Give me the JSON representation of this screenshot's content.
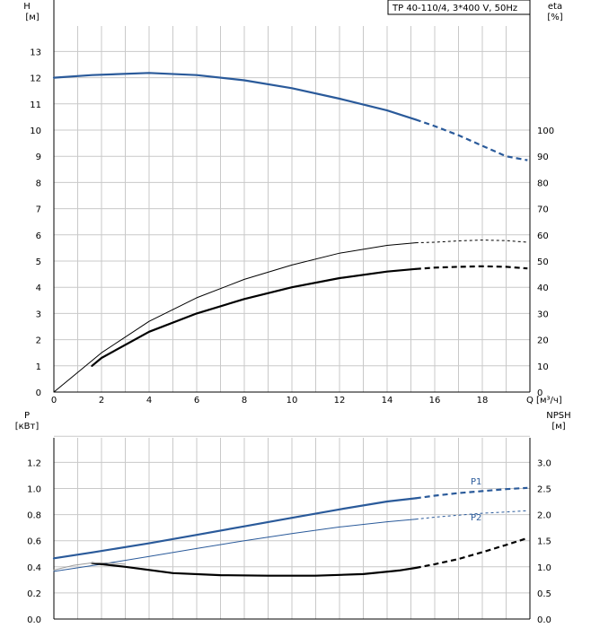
{
  "chart_data": [
    {
      "type": "line",
      "title": "TP 40-110/4, 3*400 V, 50Hz",
      "xlabel": "Q [м³/ч]",
      "ylabel_left": "H",
      "ylabel_left_unit": "[м]",
      "ylabel_right": "eta",
      "ylabel_right_unit": "[%]",
      "xlim": [
        0,
        20
      ],
      "ylim_left": [
        0,
        14
      ],
      "ylim_right": [
        0,
        140
      ],
      "grid": true,
      "x_ticks": [
        "0",
        "2",
        "4",
        "6",
        "8",
        "10",
        "12",
        "14",
        "16",
        "18",
        "Q [м³/ч]"
      ],
      "y_left_ticks": [
        "0",
        "1",
        "2",
        "3",
        "4",
        "5",
        "6",
        "7",
        "8",
        "9",
        "10",
        "11",
        "12",
        "13"
      ],
      "y_right_ticks": [
        "0",
        "10",
        "20",
        "30",
        "40",
        "50",
        "60",
        "70",
        "80",
        "90",
        "100"
      ],
      "series": [
        {
          "name": "",
          "axis": "left",
          "color": "#2a5a9a",
          "solid": [
            [
              0,
              12.0
            ],
            [
              1.6,
              12.1
            ],
            [
              4,
              12.18
            ],
            [
              6,
              12.1
            ],
            [
              8,
              11.9
            ],
            [
              10,
              11.6
            ],
            [
              12,
              11.2
            ],
            [
              14,
              10.75
            ],
            [
              15.2,
              10.4
            ]
          ],
          "dashed": [
            [
              15.2,
              10.4
            ],
            [
              16,
              10.15
            ],
            [
              17,
              9.8
            ],
            [
              18,
              9.4
            ],
            [
              19,
              9.0
            ],
            [
              19.9,
              8.85
            ]
          ]
        },
        {
          "name": "",
          "axis": "left",
          "color": "#000000",
          "solid": [
            [
              1.6,
              1.0
            ],
            [
              2,
              1.3
            ],
            [
              4,
              2.3
            ],
            [
              6,
              3.0
            ],
            [
              8,
              3.55
            ],
            [
              10,
              4.0
            ],
            [
              12,
              4.35
            ],
            [
              14,
              4.6
            ],
            [
              15.2,
              4.7
            ]
          ],
          "dashed": [
            [
              15.2,
              4.7
            ],
            [
              16,
              4.75
            ],
            [
              17,
              4.78
            ],
            [
              18,
              4.8
            ],
            [
              19,
              4.78
            ],
            [
              19.9,
              4.72
            ]
          ]
        },
        {
          "name": "",
          "axis": "left",
          "color": "#000000",
          "thin": true,
          "solid": [
            [
              0,
              0.0
            ],
            [
              2,
              1.5
            ],
            [
              4,
              2.7
            ],
            [
              6,
              3.6
            ],
            [
              8,
              4.3
            ],
            [
              10,
              4.85
            ],
            [
              12,
              5.3
            ],
            [
              14,
              5.6
            ],
            [
              15.2,
              5.7
            ]
          ],
          "dashed": [
            [
              15.2,
              5.7
            ],
            [
              16,
              5.72
            ],
            [
              17,
              5.77
            ],
            [
              18,
              5.8
            ],
            [
              19,
              5.78
            ],
            [
              19.9,
              5.72
            ]
          ]
        }
      ]
    },
    {
      "type": "line",
      "ylabel_left": "P",
      "ylabel_left_unit": "[кВт]",
      "ylabel_right": "NPSH",
      "ylabel_right_unit": "[м]",
      "xlim": [
        0,
        20
      ],
      "ylim_left": [
        0,
        1.4
      ],
      "ylim_right": [
        0,
        3.5
      ],
      "grid": true,
      "y_left_ticks": [
        "0.0",
        "0.2",
        "0.4",
        "0.6",
        "0.8",
        "1.0",
        "1.2"
      ],
      "y_right_ticks": [
        "0.0",
        "0.5",
        "1.0",
        "1.5",
        "2.0",
        "2.5",
        "3.0"
      ],
      "series": [
        {
          "name": "P1",
          "axis": "left",
          "color": "#2a5a9a",
          "solid": [
            [
              0,
              0.465
            ],
            [
              1.6,
              0.51
            ],
            [
              4,
              0.58
            ],
            [
              6,
              0.645
            ],
            [
              8,
              0.71
            ],
            [
              10,
              0.775
            ],
            [
              12,
              0.84
            ],
            [
              14,
              0.9
            ],
            [
              15.2,
              0.925
            ]
          ],
          "dashed": [
            [
              15.2,
              0.925
            ],
            [
              16,
              0.945
            ],
            [
              17,
              0.965
            ],
            [
              18,
              0.98
            ],
            [
              19,
              0.995
            ],
            [
              19.9,
              1.005
            ]
          ]
        },
        {
          "name": "P2",
          "axis": "left",
          "color": "#2a5a9a",
          "thin": true,
          "solid": [
            [
              0,
              0.365
            ],
            [
              2,
              0.42
            ],
            [
              4,
              0.48
            ],
            [
              6,
              0.54
            ],
            [
              8,
              0.6
            ],
            [
              10,
              0.655
            ],
            [
              12,
              0.705
            ],
            [
              14,
              0.745
            ],
            [
              15.2,
              0.765
            ]
          ],
          "dashed": [
            [
              15.2,
              0.765
            ],
            [
              16,
              0.78
            ],
            [
              17,
              0.795
            ],
            [
              18,
              0.81
            ],
            [
              19,
              0.82
            ],
            [
              19.9,
              0.83
            ]
          ]
        },
        {
          "name": "",
          "axis": "right",
          "color": "#000000",
          "solid": [
            [
              1.6,
              1.07
            ],
            [
              3,
              1.0
            ],
            [
              5,
              0.88
            ],
            [
              7,
              0.84
            ],
            [
              9,
              0.83
            ],
            [
              11,
              0.83
            ],
            [
              13,
              0.86
            ],
            [
              14.5,
              0.93
            ],
            [
              15.2,
              0.98
            ]
          ],
          "dashed": [
            [
              15.2,
              0.98
            ],
            [
              16,
              1.05
            ],
            [
              17,
              1.15
            ],
            [
              18,
              1.28
            ],
            [
              19,
              1.42
            ],
            [
              19.9,
              1.55
            ]
          ]
        },
        {
          "name": "",
          "axis": "left",
          "color": "#9a9a9a",
          "thin": true,
          "solid": [
            [
              0,
              0.375
            ],
            [
              0.8,
              0.41
            ],
            [
              1.6,
              0.43
            ],
            [
              2.2,
              0.43
            ],
            [
              3,
              0.42
            ]
          ],
          "dashed": []
        }
      ]
    }
  ]
}
